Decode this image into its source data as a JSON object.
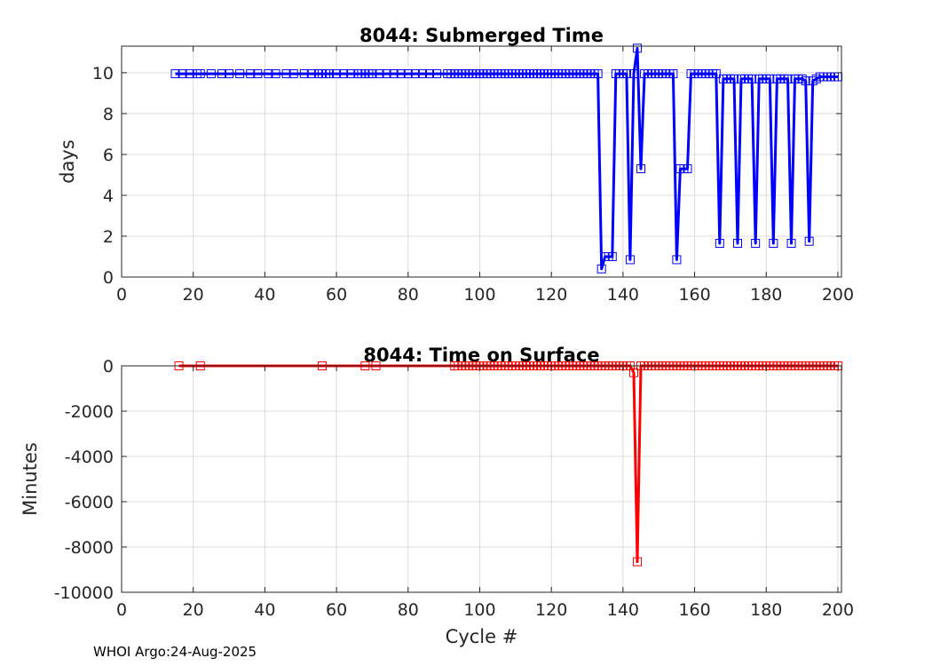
{
  "footer": "WHOI Argo:24-Aug-2025",
  "chart_data": [
    {
      "type": "line",
      "title": "8044: Submerged Time",
      "xlabel": "",
      "ylabel": "days",
      "xlim": [
        0,
        201
      ],
      "ylim": [
        0,
        11.3
      ],
      "xticks": [
        0,
        20,
        40,
        60,
        80,
        100,
        120,
        140,
        160,
        180,
        200
      ],
      "yticks": [
        0,
        2,
        4,
        6,
        8,
        10
      ],
      "grid": true,
      "color": "#0000ff",
      "series": [
        {
          "x": [
            15,
            17,
            19,
            21,
            22,
            25,
            28,
            30,
            33,
            36,
            38,
            41,
            43,
            46,
            48,
            51,
            53,
            55,
            56,
            57,
            58,
            60,
            62,
            64,
            66,
            67,
            68,
            69,
            70,
            72,
            74,
            76,
            78,
            80,
            82,
            84,
            86,
            88,
            91,
            92,
            93,
            94,
            95,
            96,
            97,
            98,
            99,
            100,
            101,
            102,
            103,
            104,
            105,
            106,
            107,
            108,
            109,
            110,
            111,
            112,
            113,
            114,
            115,
            116,
            117,
            118,
            119,
            120,
            121,
            122,
            123,
            124,
            125,
            126,
            127,
            128,
            129,
            130,
            131,
            132,
            133,
            134,
            135,
            136,
            137,
            138,
            139,
            140,
            141,
            142,
            143,
            144,
            145,
            146,
            147,
            148,
            149,
            150,
            151,
            152,
            153,
            154,
            155,
            156,
            157,
            158,
            159,
            160,
            161,
            162,
            163,
            164,
            165,
            166,
            167,
            168,
            169,
            170,
            171,
            172,
            173,
            174,
            175,
            176,
            177,
            178,
            179,
            180,
            181,
            182,
            183,
            184,
            185,
            186,
            187,
            188,
            189,
            190,
            191,
            192,
            193,
            194,
            195,
            196,
            197,
            198,
            199,
            200
          ],
          "y": [
            9.95,
            9.95,
            9.95,
            9.95,
            9.95,
            9.95,
            9.95,
            9.95,
            9.95,
            9.95,
            9.95,
            9.95,
            9.95,
            9.95,
            9.95,
            9.95,
            9.95,
            9.95,
            9.95,
            9.95,
            9.95,
            9.95,
            9.95,
            9.95,
            9.95,
            9.95,
            9.95,
            9.95,
            9.95,
            9.95,
            9.95,
            9.95,
            9.95,
            9.95,
            9.95,
            9.95,
            9.95,
            9.95,
            9.95,
            9.95,
            9.95,
            9.95,
            9.95,
            9.95,
            9.95,
            9.95,
            9.95,
            9.95,
            9.95,
            9.95,
            9.95,
            9.95,
            9.95,
            9.95,
            9.95,
            9.95,
            9.95,
            9.95,
            9.95,
            9.95,
            9.95,
            9.95,
            9.95,
            9.95,
            9.95,
            9.95,
            9.95,
            9.95,
            9.95,
            9.95,
            9.95,
            9.95,
            9.95,
            9.95,
            9.95,
            9.95,
            9.95,
            9.95,
            9.95,
            9.95,
            9.95,
            0.4,
            1.0,
            1.0,
            1.0,
            9.95,
            9.95,
            9.95,
            9.95,
            0.85,
            9.95,
            11.2,
            5.3,
            9.95,
            9.95,
            9.95,
            9.95,
            9.95,
            9.95,
            9.95,
            9.95,
            9.95,
            0.85,
            5.3,
            5.3,
            5.3,
            9.95,
            9.95,
            9.95,
            9.95,
            9.95,
            9.95,
            9.95,
            9.95,
            1.65,
            9.7,
            9.7,
            9.7,
            9.7,
            1.65,
            9.7,
            9.7,
            9.7,
            9.7,
            1.65,
            9.7,
            9.7,
            9.7,
            9.7,
            1.65,
            9.7,
            9.7,
            9.7,
            9.7,
            1.65,
            9.7,
            9.7,
            9.7,
            9.6,
            1.75,
            9.6,
            9.7,
            9.8,
            9.8,
            9.8,
            9.8,
            9.8,
            9.8
          ]
        }
      ]
    },
    {
      "type": "line",
      "title": "8044: Time on Surface",
      "xlabel": "Cycle #",
      "ylabel": "Minutes",
      "xlim": [
        0,
        201
      ],
      "ylim": [
        -10000,
        0
      ],
      "xticks": [
        0,
        20,
        40,
        60,
        80,
        100,
        120,
        140,
        160,
        180,
        200
      ],
      "yticks": [
        0,
        -2000,
        -4000,
        -6000,
        -8000,
        -10000
      ],
      "grid": true,
      "color": "#ff0000",
      "series": [
        {
          "x": [
            16,
            22,
            56,
            68,
            71,
            93,
            94,
            95,
            96,
            97,
            98,
            99,
            100,
            101,
            102,
            103,
            104,
            105,
            106,
            107,
            108,
            109,
            110,
            111,
            112,
            113,
            114,
            115,
            116,
            117,
            118,
            119,
            120,
            121,
            122,
            123,
            124,
            125,
            126,
            127,
            128,
            129,
            130,
            131,
            132,
            133,
            134,
            135,
            136,
            137,
            138,
            139,
            140,
            141,
            142,
            143,
            144,
            145,
            146,
            147,
            148,
            149,
            150,
            151,
            152,
            153,
            154,
            155,
            156,
            157,
            158,
            159,
            160,
            161,
            162,
            163,
            164,
            165,
            166,
            167,
            168,
            169,
            170,
            171,
            172,
            173,
            174,
            175,
            176,
            177,
            178,
            179,
            180,
            181,
            182,
            183,
            184,
            185,
            186,
            187,
            188,
            189,
            190,
            191,
            192,
            193,
            194,
            195,
            196,
            197,
            198,
            199,
            200
          ],
          "y": [
            0,
            0,
            0,
            0,
            0,
            0,
            0,
            0,
            0,
            0,
            0,
            0,
            0,
            0,
            0,
            0,
            0,
            0,
            0,
            0,
            0,
            0,
            0,
            0,
            0,
            0,
            0,
            0,
            0,
            0,
            0,
            0,
            0,
            0,
            0,
            0,
            0,
            0,
            0,
            0,
            0,
            0,
            0,
            0,
            0,
            0,
            0,
            0,
            0,
            0,
            0,
            0,
            0,
            0,
            0,
            -300,
            -8650,
            0,
            0,
            0,
            0,
            0,
            0,
            0,
            0,
            0,
            0,
            0,
            0,
            0,
            0,
            0,
            0,
            0,
            0,
            0,
            0,
            0,
            0,
            0,
            0,
            0,
            0,
            0,
            0,
            0,
            0,
            0,
            0,
            0,
            0,
            0,
            0,
            0,
            0,
            0,
            0,
            0,
            0,
            0,
            0,
            0,
            0,
            0,
            0,
            0,
            0,
            0,
            0,
            0,
            0,
            0,
            0
          ]
        }
      ]
    }
  ]
}
